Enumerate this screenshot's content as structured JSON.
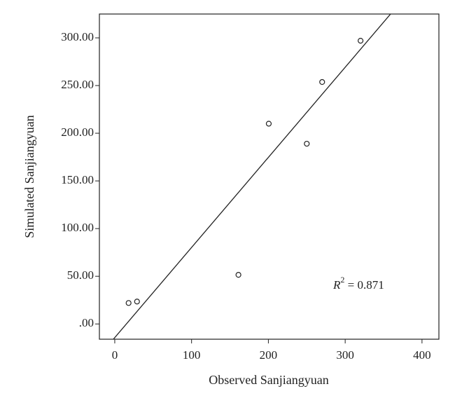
{
  "chart_data": {
    "type": "scatter",
    "x_label": "Observed Sanjiangyuan",
    "y_label": "Simulated Sanjiangyuan",
    "x": [
      18,
      29,
      161,
      200.5,
      250,
      270,
      320
    ],
    "series": [
      {
        "color": "#222222",
        "values": [
          22,
          23.5,
          51.5,
          210,
          189,
          253.7,
          297
        ]
      }
    ],
    "xlim": [
      -20,
      422
    ],
    "ylim": [
      -16,
      325
    ],
    "xticks": [
      0,
      100,
      200,
      300,
      400
    ],
    "yticks": [
      {
        "value": 0,
        "label": ".00"
      },
      {
        "value": 50,
        "label": "50.00"
      },
      {
        "value": 100,
        "label": "100.00"
      },
      {
        "value": 150,
        "label": "150.00"
      },
      {
        "value": 200,
        "label": "200.00"
      },
      {
        "value": 250,
        "label": "250.00"
      },
      {
        "value": 300,
        "label": "300.00"
      }
    ],
    "fit_line": {
      "slope": 0.945,
      "intercept": -14.3
    },
    "annotation": {
      "symbol": "R",
      "exponent": "2",
      "text": " = 0.871"
    }
  }
}
